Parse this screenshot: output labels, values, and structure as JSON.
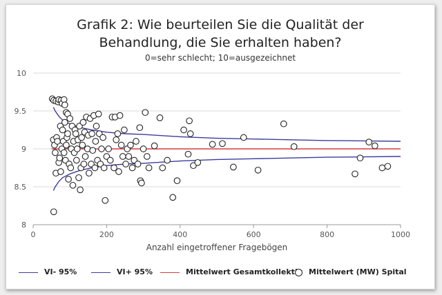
{
  "chart_data": {
    "type": "scatter",
    "title_line1": "Grafik 2: Wie beurteilen Sie die Qualität der",
    "title_line2": "Behandlung, die Sie erhalten haben?",
    "subtitle": "0=sehr schlecht; 10=ausgezeichnet",
    "xlabel": "Anzahl eingetroffener Fragebögen",
    "xlim": [
      0,
      1000
    ],
    "ylim": [
      8,
      10
    ],
    "xticks": [
      "0",
      "200",
      "400",
      "600",
      "800",
      "1000"
    ],
    "yticks": [
      "8",
      "8.5",
      "9",
      "9.5",
      "10"
    ],
    "grid": "horizontal",
    "mean": 9.0,
    "colors": {
      "ci": "#3b3b9e",
      "mean": "#d93a3a",
      "points": "#222222"
    },
    "legend": [
      {
        "name": "VI- 95%",
        "kind": "line",
        "color": "#3b3b9e"
      },
      {
        "name": "VI+ 95%",
        "kind": "line",
        "color": "#3b3b9e"
      },
      {
        "name": "Mittelwert Gesamtkollektiv",
        "kind": "line",
        "color": "#d93a3a"
      },
      {
        "name": "Mittelwert (MW) Spital",
        "kind": "marker",
        "color": "#222222"
      }
    ],
    "ci_upper": [
      [
        55,
        9.55
      ],
      [
        60,
        9.5
      ],
      [
        70,
        9.43
      ],
      [
        80,
        9.38
      ],
      [
        100,
        9.33
      ],
      [
        130,
        9.28
      ],
      [
        160,
        9.25
      ],
      [
        200,
        9.22
      ],
      [
        250,
        9.2
      ],
      [
        300,
        9.19
      ],
      [
        400,
        9.16
      ],
      [
        500,
        9.14
      ],
      [
        600,
        9.13
      ],
      [
        700,
        9.12
      ],
      [
        800,
        9.11
      ],
      [
        900,
        9.105
      ],
      [
        1000,
        9.1
      ]
    ],
    "ci_lower": [
      [
        55,
        8.45
      ],
      [
        60,
        8.5
      ],
      [
        70,
        8.57
      ],
      [
        80,
        8.62
      ],
      [
        100,
        8.67
      ],
      [
        130,
        8.72
      ],
      [
        160,
        8.75
      ],
      [
        200,
        8.78
      ],
      [
        250,
        8.8
      ],
      [
        300,
        8.81
      ],
      [
        400,
        8.84
      ],
      [
        500,
        8.86
      ],
      [
        600,
        8.87
      ],
      [
        700,
        8.88
      ],
      [
        800,
        8.89
      ],
      [
        900,
        8.895
      ],
      [
        1000,
        8.9
      ]
    ],
    "points": [
      [
        52,
        9.66
      ],
      [
        56,
        9.64
      ],
      [
        62,
        9.63
      ],
      [
        68,
        9.62
      ],
      [
        70,
        9.65
      ],
      [
        76,
        9.64
      ],
      [
        79,
        9.6
      ],
      [
        84,
        9.65
      ],
      [
        86,
        9.58
      ],
      [
        90,
        9.48
      ],
      [
        94,
        9.46
      ],
      [
        55,
        9.12
      ],
      [
        58,
        9.05
      ],
      [
        60,
        8.95
      ],
      [
        62,
        8.68
      ],
      [
        64,
        9.15
      ],
      [
        66,
        9.1
      ],
      [
        70,
        8.82
      ],
      [
        72,
        8.88
      ],
      [
        74,
        9.3
      ],
      [
        75,
        8.7
      ],
      [
        78,
        9.0
      ],
      [
        80,
        9.25
      ],
      [
        82,
        9.1
      ],
      [
        84,
        8.95
      ],
      [
        86,
        9.35
      ],
      [
        88,
        8.85
      ],
      [
        90,
        9.05
      ],
      [
        92,
        9.15
      ],
      [
        94,
        9.2
      ],
      [
        96,
        8.6
      ],
      [
        98,
        8.8
      ],
      [
        100,
        9.4
      ],
      [
        102,
        8.75
      ],
      [
        104,
        9.0
      ],
      [
        106,
        9.3
      ],
      [
        108,
        8.52
      ],
      [
        110,
        9.1
      ],
      [
        112,
        8.95
      ],
      [
        114,
        9.25
      ],
      [
        116,
        9.2
      ],
      [
        118,
        8.85
      ],
      [
        120,
        9.0
      ],
      [
        122,
        9.12
      ],
      [
        124,
        8.62
      ],
      [
        126,
        9.3
      ],
      [
        128,
        8.46
      ],
      [
        130,
        8.75
      ],
      [
        132,
        9.15
      ],
      [
        134,
        9.05
      ],
      [
        136,
        9.35
      ],
      [
        138,
        8.8
      ],
      [
        140,
        9.22
      ],
      [
        142,
        8.9
      ],
      [
        145,
        9.42
      ],
      [
        148,
        9.0
      ],
      [
        150,
        9.18
      ],
      [
        152,
        8.68
      ],
      [
        155,
        9.4
      ],
      [
        158,
        8.8
      ],
      [
        160,
        9.2
      ],
      [
        162,
        8.98
      ],
      [
        165,
        9.44
      ],
      [
        168,
        8.75
      ],
      [
        170,
        9.1
      ],
      [
        172,
        9.3
      ],
      [
        175,
        8.85
      ],
      [
        178,
        9.46
      ],
      [
        180,
        9.2
      ],
      [
        183,
        8.8
      ],
      [
        186,
        9.0
      ],
      [
        190,
        9.15
      ],
      [
        193,
        8.75
      ],
      [
        196,
        8.32
      ],
      [
        200,
        8.9
      ],
      [
        205,
        9.0
      ],
      [
        210,
        8.85
      ],
      [
        215,
        9.42
      ],
      [
        220,
        8.75
      ],
      [
        223,
        9.42
      ],
      [
        226,
        9.12
      ],
      [
        230,
        9.2
      ],
      [
        233,
        8.7
      ],
      [
        236,
        9.44
      ],
      [
        240,
        9.05
      ],
      [
        244,
        8.9
      ],
      [
        248,
        9.25
      ],
      [
        252,
        8.8
      ],
      [
        256,
        9.0
      ],
      [
        260,
        8.9
      ],
      [
        265,
        9.05
      ],
      [
        270,
        8.75
      ],
      [
        275,
        8.85
      ],
      [
        280,
        9.1
      ],
      [
        285,
        8.8
      ],
      [
        290,
        9.28
      ],
      [
        292,
        8.58
      ],
      [
        295,
        8.55
      ],
      [
        300,
        9.0
      ],
      [
        305,
        9.48
      ],
      [
        310,
        8.9
      ],
      [
        315,
        8.75
      ],
      [
        330,
        9.04
      ],
      [
        345,
        9.41
      ],
      [
        352,
        8.75
      ],
      [
        365,
        8.85
      ],
      [
        380,
        8.36
      ],
      [
        392,
        8.58
      ],
      [
        410,
        9.25
      ],
      [
        422,
        8.93
      ],
      [
        425,
        9.37
      ],
      [
        428,
        9.2
      ],
      [
        436,
        8.78
      ],
      [
        448,
        8.82
      ],
      [
        488,
        9.06
      ],
      [
        515,
        9.07
      ],
      [
        545,
        8.76
      ],
      [
        573,
        9.15
      ],
      [
        612,
        8.72
      ],
      [
        682,
        9.33
      ],
      [
        710,
        9.03
      ],
      [
        876,
        8.67
      ],
      [
        890,
        8.88
      ],
      [
        914,
        9.09
      ],
      [
        930,
        9.04
      ],
      [
        950,
        8.75
      ],
      [
        965,
        8.77
      ],
      [
        56,
        8.17
      ]
    ]
  }
}
